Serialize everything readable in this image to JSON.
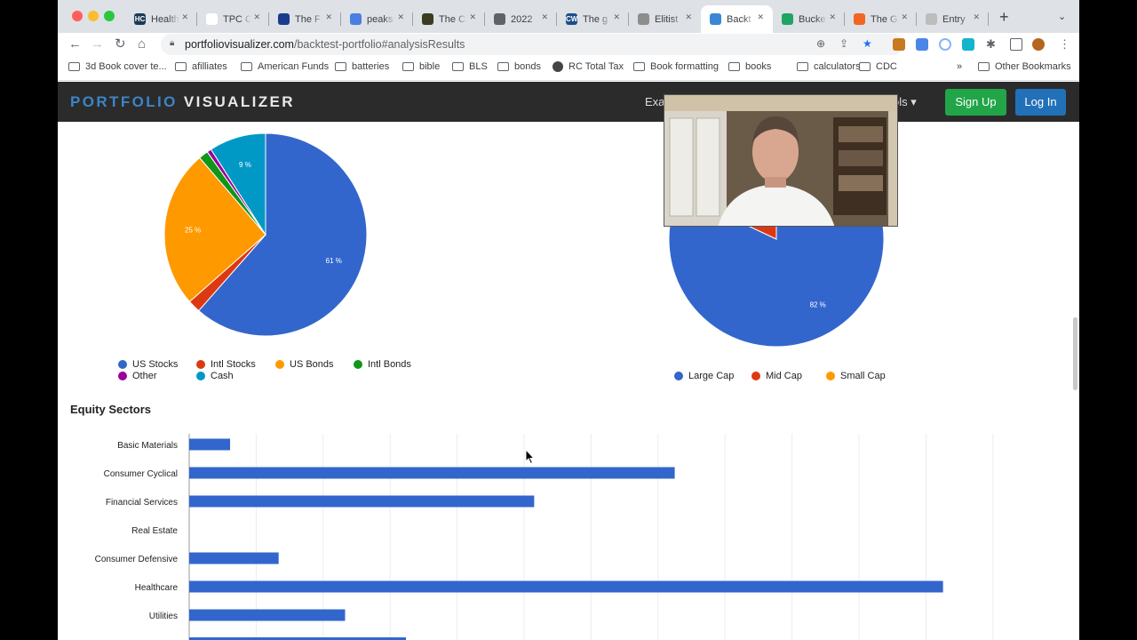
{
  "browser": {
    "tabs": [
      {
        "title": "Health",
        "fav_color": "#1b3a57",
        "fav_text": "HC"
      },
      {
        "title": "TPC C",
        "fav_color": "#ffffff",
        "fav_text": ""
      },
      {
        "title": "The F",
        "fav_color": "#1a3c8f",
        "fav_text": ""
      },
      {
        "title": "peaks",
        "fav_color": "#4a7ee0",
        "fav_text": ""
      },
      {
        "title": "The C",
        "fav_color": "#3b3b1f",
        "fav_text": ""
      },
      {
        "title": "2022",
        "fav_color": "#5f6368",
        "fav_text": ""
      },
      {
        "title": "The g",
        "fav_color": "#1b4f8a",
        "fav_text": "CW"
      },
      {
        "title": "Elitist",
        "fav_color": "#8d8d8d",
        "fav_text": ""
      },
      {
        "title": "Backt",
        "fav_color": "#3a87d6",
        "fav_text": "",
        "active": true
      },
      {
        "title": "Bucke",
        "fav_color": "#1fa463",
        "fav_text": ""
      },
      {
        "title": "The G",
        "fav_color": "#f26522",
        "fav_text": ""
      },
      {
        "title": "Entry",
        "fav_color": "#bdbdbd",
        "fav_text": ""
      }
    ],
    "url_host": "portfoliovisualizer.com",
    "url_path": "/backtest-portfolio#analysisResults",
    "bookmarks": [
      {
        "label": "3d Book cover te...",
        "type": "folder"
      },
      {
        "label": "afilliates",
        "type": "folder"
      },
      {
        "label": "American Funds",
        "type": "folder"
      },
      {
        "label": "batteries",
        "type": "folder"
      },
      {
        "label": "bible",
        "type": "folder"
      },
      {
        "label": "BLS",
        "type": "folder"
      },
      {
        "label": "bonds",
        "type": "folder"
      },
      {
        "label": "RC Total Tax",
        "type": "site"
      },
      {
        "label": "Book formatting",
        "type": "folder"
      },
      {
        "label": "books",
        "type": "folder"
      },
      {
        "label": "calculators",
        "type": "folder"
      },
      {
        "label": "CDC",
        "type": "folder"
      }
    ],
    "overflow": "»",
    "other_bookmarks": "Other Bookmarks"
  },
  "site": {
    "logo_part1": "PORTFOLIO",
    "logo_part2": "VISUALIZER",
    "nav_partial_left": "Exa",
    "nav_partial_right": "ols ▾",
    "signup": "Sign Up",
    "login": "Log In"
  },
  "colors": {
    "blue": "#3366cc",
    "red": "#dc3912",
    "orange": "#ff9900",
    "green": "#109618",
    "purple": "#990099",
    "cyan": "#0099c6"
  },
  "chart_data": [
    {
      "type": "pie",
      "title": "",
      "slices": [
        {
          "label": "US Stocks",
          "value": 61,
          "data_label": "61 %",
          "color": "#3366cc"
        },
        {
          "label": "Intl Stocks",
          "value": 2,
          "data_label": "",
          "color": "#dc3912"
        },
        {
          "label": "US Bonds",
          "value": 25,
          "data_label": "25 %",
          "color": "#ff9900"
        },
        {
          "label": "Intl Bonds",
          "value": 1.5,
          "data_label": "",
          "color": "#109618"
        },
        {
          "label": "Other",
          "value": 0.7,
          "data_label": "",
          "color": "#990099"
        },
        {
          "label": "Cash",
          "value": 9,
          "data_label": "9 %",
          "color": "#0099c6"
        }
      ],
      "legend": [
        "US Stocks",
        "Intl Stocks",
        "US Bonds",
        "Intl Bonds",
        "Other",
        "Cash"
      ],
      "legend_position": "bottom"
    },
    {
      "type": "pie",
      "title": "",
      "slices": [
        {
          "label": "Large Cap",
          "value": 82,
          "data_label": "82 %",
          "color": "#3366cc"
        },
        {
          "label": "Mid Cap",
          "value": 18,
          "data_label": "",
          "color": "#dc3912"
        },
        {
          "label": "Small Cap",
          "value": 0,
          "data_label": "",
          "color": "#ff9900"
        }
      ],
      "legend": [
        "Large Cap",
        "Mid Cap",
        "Small Cap"
      ],
      "legend_position": "bottom"
    },
    {
      "type": "bar",
      "orientation": "horizontal",
      "title": "Equity Sectors",
      "categories": [
        "Basic Materials",
        "Consumer Cyclical",
        "Financial Services",
        "Real Estate",
        "Consumer Defensive",
        "Healthcare",
        "Utilities"
      ],
      "values": [
        3.2,
        38,
        27,
        0,
        7,
        59,
        12.2
      ],
      "xlim": [
        0,
        62
      ],
      "grid": true,
      "color": "#3366cc"
    }
  ]
}
